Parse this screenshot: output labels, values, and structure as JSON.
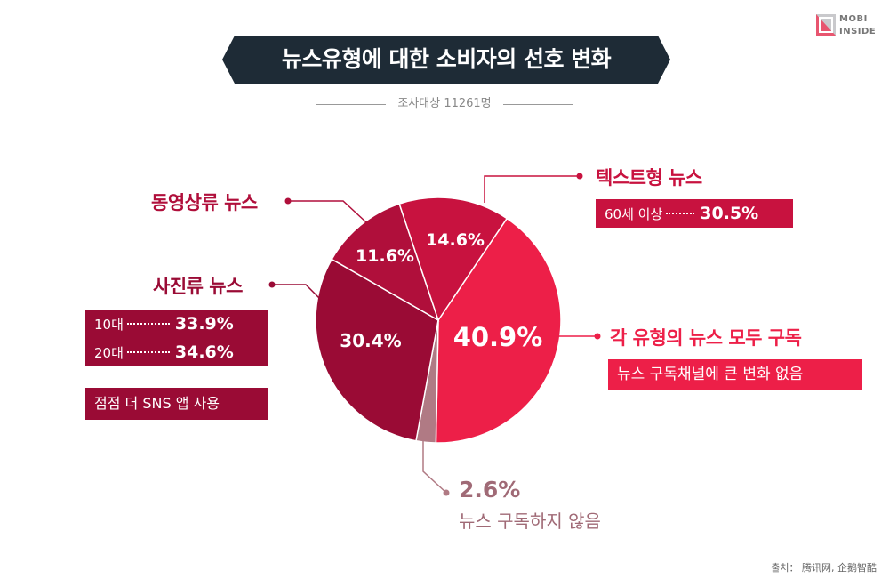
{
  "logo": {
    "line1": "MOBI",
    "line2": "INSIDE"
  },
  "title": "뉴스유형에 대한 소비자의 선호 변화",
  "subtitle": "조사대상 11261명",
  "colors": {
    "banner": "#1e2b36",
    "slice_all": "#ed1f48",
    "slice_text": "#c8123f",
    "slice_video": "#b00f3b",
    "slice_photo": "#9a0b35",
    "slice_none": "#b07a84"
  },
  "chart_data": {
    "type": "pie",
    "title": "뉴스유형에 대한 소비자의 선호 변화",
    "slices": [
      {
        "label": "각 유형의 뉴스 모두 구독",
        "value": 40.9,
        "value_label": "40.9%"
      },
      {
        "label": "뉴스 구독하지 않음",
        "value": 2.6,
        "value_label": "2.6%"
      },
      {
        "label": "사진류 뉴스",
        "value": 30.4,
        "value_label": "30.4%"
      },
      {
        "label": "동영상류 뉴스",
        "value": 11.6,
        "value_label": "11.6%"
      },
      {
        "label": "텍스트형 뉴스",
        "value": 14.6,
        "value_label": "14.6%"
      }
    ]
  },
  "annotations": {
    "text_news": {
      "label": "텍스트형 뉴스",
      "detail_label": "60세 이상",
      "detail_value": "30.5%"
    },
    "video_news": {
      "label": "동영상류 뉴스"
    },
    "photo_news": {
      "label": "사진류 뉴스",
      "rows": [
        {
          "label": "10대",
          "value": "33.9%"
        },
        {
          "label": "20대",
          "value": "34.6%"
        }
      ],
      "note": "점점 더 SNS 앱 사용"
    },
    "all_news": {
      "label": "각 유형의 뉴스 모두 구독",
      "note": "뉴스 구독채널에 큰 변화 없음"
    },
    "no_news": {
      "value": "2.6%",
      "label": "뉴스 구독하지 않음"
    }
  },
  "source": "출처： 腾讯网, 企鹅智酷"
}
